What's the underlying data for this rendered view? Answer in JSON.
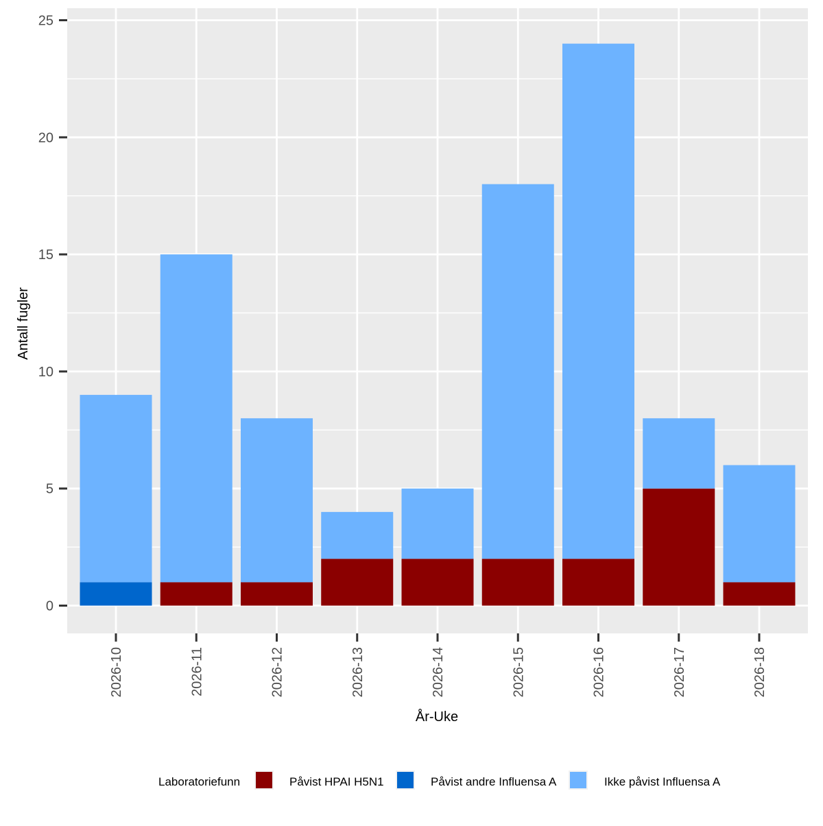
{
  "chart_data": {
    "type": "bar",
    "stacked": true,
    "xlabel": "År-Uke",
    "ylabel": "Antall fugler",
    "ylim": [
      0,
      25
    ],
    "yticks": [
      0,
      5,
      10,
      15,
      20,
      25
    ],
    "grid": true,
    "legend_position": "bottom",
    "legend_title": "Laboratoriefunn",
    "categories": [
      "2026-10",
      "2026-11",
      "2026-12",
      "2026-13",
      "2026-14",
      "2026-15",
      "2026-16",
      "2026-17",
      "2026-18"
    ],
    "series": [
      {
        "name": "Påvist HPAI H5N1",
        "color": "#8B0000",
        "values": [
          0,
          1,
          1,
          2,
          2,
          2,
          2,
          5,
          1
        ]
      },
      {
        "name": "Påvist andre Influensa A",
        "color": "#0066CC",
        "values": [
          1,
          0,
          0,
          0,
          0,
          0,
          0,
          0,
          0
        ]
      },
      {
        "name": "Ikke påvist Influensa A",
        "color": "#6DB3FF",
        "values": [
          8,
          14,
          7,
          2,
          3,
          16,
          22,
          3,
          5
        ]
      }
    ]
  }
}
